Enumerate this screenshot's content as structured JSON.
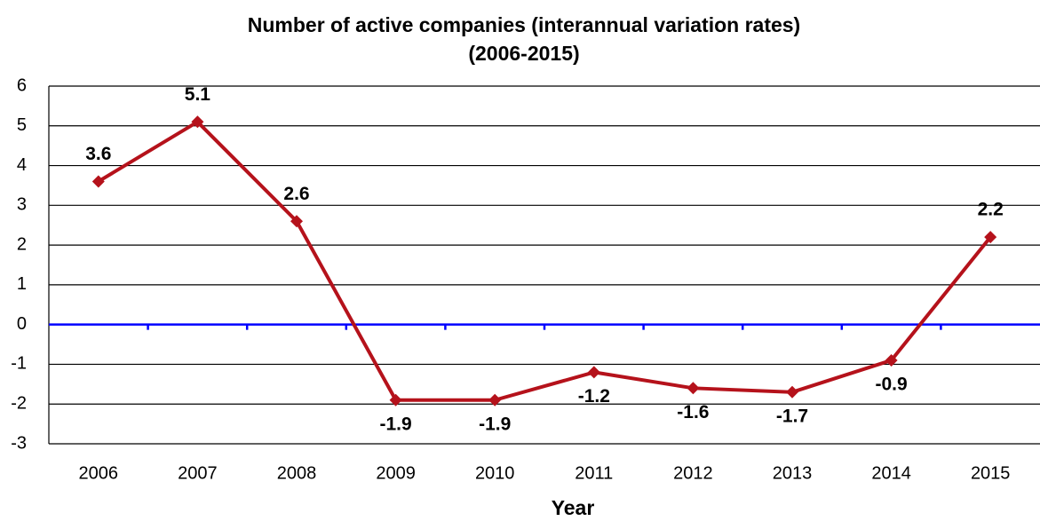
{
  "chart_data": {
    "type": "line",
    "title": "Number of active companies (interannual variation rates)",
    "subtitle": "(2006-2015)",
    "x_label": "Year",
    "categories": [
      "2006",
      "2007",
      "2008",
      "2009",
      "2010",
      "2011",
      "2012",
      "2013",
      "2014",
      "2015"
    ],
    "series": [
      {
        "name": "Number of active companies",
        "color": "#b5121b",
        "values": [
          3.6,
          5.1,
          2.6,
          -1.9,
          -1.9,
          -1.2,
          -1.6,
          -1.7,
          -0.9,
          2.2
        ]
      }
    ],
    "ylim": [
      -3,
      6
    ],
    "yticks": [
      -3,
      -2,
      -1,
      0,
      1,
      2,
      3,
      4,
      5,
      6
    ],
    "grid": true,
    "zero_line_color": "#0000ff"
  }
}
